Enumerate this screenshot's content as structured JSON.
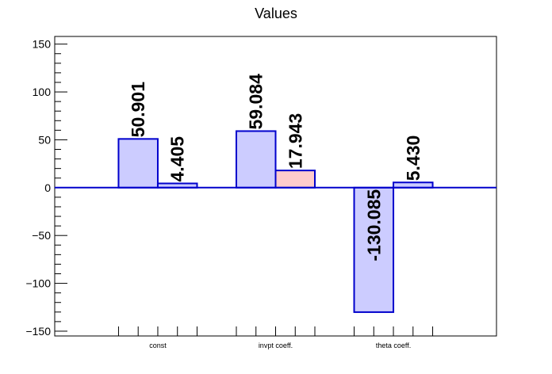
{
  "chart_data": {
    "type": "bar",
    "title": "Values",
    "categories": [
      "const",
      "invpt coeff.",
      "theta coeff."
    ],
    "series": [
      {
        "values": [
          50.901,
          59.084,
          -130.085
        ],
        "labels": [
          "50.901",
          "59.084",
          "-130.085"
        ],
        "fill": "#ccccff",
        "stroke": "#0000cc"
      },
      {
        "values": [
          4.405,
          17.943,
          5.43
        ],
        "labels": [
          "4.405",
          "17.943",
          "5.430"
        ],
        "fills": [
          "#ccccff",
          "#ffcccc",
          "#ccccff"
        ],
        "stroke": "#0000cc"
      }
    ],
    "ylim": [
      -155,
      158
    ],
    "y_ticks": [
      -150,
      -100,
      -50,
      0,
      50,
      100,
      150
    ],
    "y_tick_labels": [
      "−150",
      "−100",
      "−50",
      "0",
      "50",
      "100",
      "150"
    ],
    "zero_line_color": "#0000cc",
    "grid": false
  }
}
